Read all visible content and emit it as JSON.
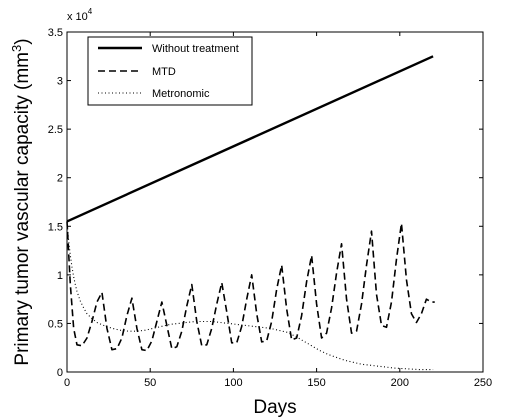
{
  "chart_data": {
    "type": "line",
    "title": "",
    "xlabel": "Days",
    "ylabel": "Primary tumor vascular capacity (mm",
    "ylabel_superscript": "3",
    "ylabel_suffix": ")",
    "y_multiplier_base": "x 10",
    "y_multiplier_exponent": "4",
    "xlim": [
      0,
      250
    ],
    "ylim": [
      0,
      35000
    ],
    "x_ticks": [
      0,
      50,
      100,
      150,
      200,
      250
    ],
    "x_tick_labels": [
      "0",
      "50",
      "100",
      "150",
      "200",
      "250"
    ],
    "y_ticks": [
      0,
      5000,
      10000,
      15000,
      20000,
      25000,
      30000,
      35000
    ],
    "y_tick_labels": [
      "0",
      "0.5",
      "1",
      "1.5",
      "2",
      "2.5",
      "3",
      "3.5"
    ],
    "grid": false,
    "legend_position": "top-left",
    "series": [
      {
        "name": "Without treatment",
        "style": "solid",
        "x": [
          0,
          220
        ],
        "y": [
          15500,
          32500
        ]
      },
      {
        "name": "MTD",
        "style": "dashed",
        "x": [
          0,
          2,
          4,
          6,
          9,
          12,
          15,
          18,
          21,
          24,
          27,
          30,
          33,
          36,
          39,
          42,
          45,
          48,
          51,
          54,
          57,
          60,
          63,
          66,
          69,
          72,
          75,
          78,
          81,
          84,
          87,
          90,
          93,
          96,
          99,
          102,
          105,
          108,
          111,
          114,
          117,
          120,
          123,
          126,
          129,
          132,
          135,
          138,
          141,
          144,
          147,
          150,
          153,
          156,
          159,
          162,
          165,
          168,
          171,
          174,
          177,
          180,
          183,
          186,
          189,
          192,
          195,
          198,
          201,
          204,
          207,
          210,
          213,
          216,
          219,
          221
        ],
        "y": [
          15500,
          9000,
          4500,
          2800,
          2700,
          3500,
          5200,
          7200,
          8200,
          4500,
          2300,
          2400,
          3500,
          5800,
          7600,
          4500,
          2300,
          2200,
          3200,
          5200,
          7200,
          4800,
          2400,
          2600,
          4200,
          6800,
          9000,
          5200,
          2700,
          2800,
          4500,
          7000,
          9200,
          6200,
          3000,
          3000,
          4700,
          7500,
          10000,
          6000,
          3100,
          3200,
          5200,
          8500,
          11000,
          6500,
          3300,
          3500,
          5800,
          9300,
          12000,
          7000,
          3500,
          4000,
          6600,
          10200,
          13200,
          7500,
          4000,
          4200,
          7000,
          11000,
          14500,
          8000,
          4800,
          4600,
          7200,
          11600,
          15300,
          9500,
          6000,
          5100,
          6000,
          7500,
          7200,
          7200
        ]
      },
      {
        "name": "Metronomic",
        "style": "dotted",
        "x": [
          0,
          1,
          2,
          3,
          4,
          5,
          6,
          8,
          10,
          12,
          15,
          18,
          22,
          27,
          32,
          37,
          42,
          47,
          52,
          57,
          62,
          67,
          72,
          77,
          82,
          87,
          92,
          97,
          102,
          107,
          112,
          117,
          122,
          127,
          132,
          137,
          142,
          147,
          152,
          157,
          162,
          167,
          172,
          177,
          182,
          187,
          192,
          197,
          202,
          207,
          212,
          217,
          220
        ],
        "y": [
          15500,
          13500,
          12000,
          10800,
          9800,
          9000,
          8300,
          7300,
          6600,
          6000,
          5500,
          5100,
          4800,
          4500,
          4300,
          4200,
          4200,
          4300,
          4500,
          4700,
          4900,
          5000,
          5100,
          5200,
          5200,
          5200,
          5100,
          5000,
          4900,
          4800,
          4700,
          4600,
          4500,
          4300,
          4100,
          3700,
          3200,
          2700,
          2200,
          1800,
          1500,
          1200,
          1000,
          800,
          700,
          600,
          500,
          400,
          350,
          300,
          250,
          250,
          250
        ]
      }
    ]
  }
}
